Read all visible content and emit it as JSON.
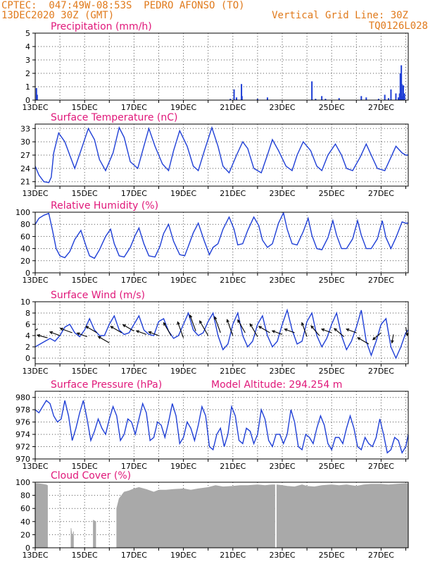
{
  "header": {
    "line1": "CPTEC:  047:49W-08:53S  PEDRO AFONSO (TO)",
    "line2": "13DEC2020 30Z (GMT)",
    "grid_note": "Vertical Grid Line: 30Z",
    "code": "TQ0126L028"
  },
  "colors": {
    "header": "#e07a1c",
    "title": "#e0187a",
    "line": "#1f3fd6",
    "bar": "#1f3fd6",
    "cloud": "#a9a9a9",
    "grid": "#555555",
    "arrow": "#000000"
  },
  "chart_data": [
    {
      "type": "bar",
      "title": "Precipitation (mm/h)",
      "x_range": [
        13,
        28.1
      ],
      "x_ticks": [
        "13DEC",
        "15DEC",
        "17DEC",
        "19DEC",
        "21DEC",
        "23DEC",
        "25DEC",
        "27DEC"
      ],
      "ylim": [
        0,
        5
      ],
      "y_ticks": [
        0,
        1,
        2,
        3,
        4,
        5
      ],
      "x": [
        13.05,
        13.08,
        20.9,
        21.05,
        21.15,
        21.35,
        21.37,
        22.0,
        22.4,
        24.2,
        24.35,
        24.6,
        24.75,
        25.3,
        26.2,
        26.4,
        26.9,
        27.15,
        27.3,
        27.4,
        27.6,
        27.7,
        27.75,
        27.78,
        27.8,
        27.82,
        27.84,
        27.86,
        27.9,
        27.95
      ],
      "values": [
        0.9,
        0.4,
        0.1,
        0.8,
        0.2,
        1.2,
        0.3,
        0.1,
        0.2,
        1.4,
        0.1,
        0.3,
        0.1,
        0.15,
        0.3,
        0.2,
        0.1,
        0.4,
        0.15,
        0.8,
        0.5,
        0.2,
        0.5,
        2.0,
        0.6,
        2.6,
        1.2,
        0.3,
        1.1,
        0.5
      ]
    },
    {
      "type": "line",
      "title": "Surface Temperature (nC)",
      "x_range": [
        13,
        28.1
      ],
      "x_ticks": [
        "13DEC",
        "15DEC",
        "17DEC",
        "19DEC",
        "21DEC",
        "23DEC",
        "25DEC",
        "27DEC"
      ],
      "ylim": [
        20,
        34
      ],
      "y_ticks": [
        21,
        24,
        27,
        30,
        33
      ],
      "x": [
        13.0,
        13.15,
        13.35,
        13.55,
        13.65,
        13.75,
        13.95,
        14.2,
        14.4,
        14.6,
        14.85,
        15.15,
        15.4,
        15.6,
        15.85,
        16.15,
        16.4,
        16.6,
        16.85,
        17.15,
        17.4,
        17.6,
        17.85,
        18.15,
        18.4,
        18.6,
        18.85,
        19.15,
        19.4,
        19.6,
        19.85,
        20.15,
        20.4,
        20.6,
        20.85,
        21.15,
        21.4,
        21.6,
        21.85,
        22.15,
        22.4,
        22.6,
        22.85,
        23.15,
        23.4,
        23.6,
        23.85,
        24.15,
        24.4,
        24.6,
        24.85,
        25.15,
        25.4,
        25.6,
        25.85,
        26.15,
        26.4,
        26.6,
        26.85,
        27.15,
        27.4,
        27.6,
        27.85,
        28.0,
        28.1
      ],
      "values": [
        24.5,
        22.5,
        21.0,
        20.8,
        22.0,
        27.5,
        32.0,
        30.0,
        27.0,
        24.0,
        28.0,
        33.0,
        30.5,
        26.0,
        23.5,
        27.5,
        33.2,
        31.0,
        25.5,
        24.0,
        29.0,
        33.0,
        29.0,
        25.0,
        23.5,
        28.0,
        32.5,
        29.0,
        24.5,
        23.5,
        28.0,
        33.2,
        29.0,
        24.5,
        23.0,
        27.0,
        30.0,
        28.5,
        24.0,
        23.0,
        27.0,
        30.5,
        28.0,
        24.5,
        23.5,
        27.0,
        30.0,
        28.0,
        24.5,
        23.5,
        27.0,
        29.5,
        27.0,
        24.0,
        23.5,
        26.5,
        29.5,
        27.0,
        24.0,
        23.5,
        26.5,
        29.0,
        27.5,
        27.0,
        27.0
      ]
    },
    {
      "type": "line",
      "title": "Relative Humidity (%)",
      "x_range": [
        13,
        28.1
      ],
      "x_ticks": [
        "13DEC",
        "15DEC",
        "17DEC",
        "19DEC",
        "21DEC",
        "23DEC",
        "25DEC",
        "27DEC"
      ],
      "ylim": [
        0,
        100
      ],
      "y_ticks": [
        0,
        20,
        40,
        60,
        80,
        100
      ],
      "x": [
        13.0,
        13.15,
        13.35,
        13.55,
        13.7,
        13.85,
        14.0,
        14.2,
        14.4,
        14.6,
        14.85,
        15.05,
        15.2,
        15.4,
        15.6,
        15.85,
        16.05,
        16.2,
        16.4,
        16.6,
        16.85,
        17.05,
        17.2,
        17.4,
        17.6,
        17.85,
        18.05,
        18.2,
        18.4,
        18.6,
        18.85,
        19.05,
        19.2,
        19.4,
        19.6,
        19.85,
        20.05,
        20.2,
        20.4,
        20.6,
        20.85,
        21.05,
        21.2,
        21.4,
        21.6,
        21.85,
        22.05,
        22.2,
        22.4,
        22.6,
        22.85,
        23.05,
        23.2,
        23.4,
        23.6,
        23.85,
        24.05,
        24.2,
        24.4,
        24.6,
        24.85,
        25.05,
        25.2,
        25.4,
        25.6,
        25.85,
        26.05,
        26.2,
        26.4,
        26.6,
        26.85,
        27.05,
        27.2,
        27.4,
        27.6,
        27.85,
        28.0,
        28.1
      ],
      "values": [
        80,
        90,
        95,
        98,
        70,
        40,
        28,
        25,
        35,
        55,
        70,
        45,
        28,
        24,
        38,
        60,
        72,
        48,
        28,
        26,
        42,
        62,
        74,
        48,
        28,
        26,
        44,
        65,
        80,
        52,
        30,
        28,
        44,
        66,
        82,
        52,
        30,
        42,
        48,
        72,
        92,
        72,
        46,
        48,
        70,
        92,
        78,
        54,
        42,
        48,
        82,
        99,
        72,
        48,
        46,
        68,
        90,
        62,
        40,
        38,
        58,
        86,
        62,
        40,
        40,
        56,
        86,
        62,
        40,
        40,
        56,
        86,
        58,
        40,
        58,
        84,
        82,
        82
      ]
    },
    {
      "type": "line",
      "title": "Surface Wind (m/s)",
      "x_range": [
        13,
        28.1
      ],
      "x_ticks": [
        "13DEC",
        "15DEC",
        "17DEC",
        "19DEC",
        "21DEC",
        "23DEC",
        "25DEC",
        "27DEC"
      ],
      "ylim": [
        -1,
        10
      ],
      "y_ticks": [
        0,
        2,
        4,
        6,
        8,
        10
      ],
      "x": [
        13.0,
        13.2,
        13.4,
        13.6,
        13.8,
        14.0,
        14.2,
        14.4,
        14.6,
        14.8,
        15.0,
        15.2,
        15.4,
        15.6,
        15.8,
        16.0,
        16.2,
        16.4,
        16.6,
        16.8,
        17.0,
        17.2,
        17.4,
        17.6,
        17.8,
        18.0,
        18.2,
        18.4,
        18.6,
        18.8,
        19.0,
        19.2,
        19.4,
        19.6,
        19.8,
        20.0,
        20.2,
        20.4,
        20.6,
        20.8,
        21.0,
        21.2,
        21.4,
        21.6,
        21.8,
        22.0,
        22.2,
        22.4,
        22.6,
        22.8,
        23.0,
        23.2,
        23.4,
        23.6,
        23.8,
        24.0,
        24.2,
        24.4,
        24.6,
        24.8,
        25.0,
        25.2,
        25.4,
        25.6,
        25.8,
        26.0,
        26.2,
        26.4,
        26.6,
        26.8,
        27.0,
        27.2,
        27.4,
        27.6,
        27.8,
        28.0,
        28.1
      ],
      "values": [
        2.0,
        2.5,
        3.0,
        3.5,
        3.0,
        4.0,
        5.5,
        6.0,
        4.5,
        3.8,
        5.0,
        7.0,
        5.0,
        4.0,
        4.0,
        6.0,
        7.5,
        5.0,
        4.2,
        4.5,
        6.0,
        7.5,
        5.0,
        4.2,
        4.0,
        6.5,
        7.0,
        4.8,
        3.5,
        4.0,
        6.0,
        8.0,
        5.0,
        4.0,
        4.5,
        6.5,
        8.0,
        4.0,
        1.5,
        2.5,
        6.0,
        8.0,
        4.0,
        2.0,
        3.0,
        6.0,
        7.5,
        4.0,
        2.0,
        3.0,
        6.0,
        8.5,
        5.0,
        2.5,
        3.0,
        6.5,
        8.0,
        4.0,
        2.0,
        3.5,
        6.0,
        8.0,
        4.0,
        1.5,
        3.0,
        5.5,
        8.5,
        3.0,
        0.5,
        3.0,
        6.0,
        7.0,
        2.0,
        0.0,
        2.0,
        4.5,
        5.0
      ],
      "arrows": {
        "x": [
          13.1,
          13.5,
          14.0,
          14.5,
          15.1,
          15.5,
          16.0,
          16.5,
          17.0,
          17.5,
          18.0,
          18.5,
          19.0,
          19.5,
          20.0,
          20.5,
          21.0,
          21.5,
          22.0,
          22.5,
          23.0,
          23.5,
          24.0,
          24.5,
          25.0,
          25.5,
          26.0,
          26.5,
          27.0,
          27.5,
          28.0
        ],
        "y": [
          5.2,
          3.6,
          4.0,
          4.5,
          3.8,
          4.5,
          2.7,
          4.5,
          4.8,
          4.2,
          4.0,
          4.0,
          3.6,
          4.8,
          4.0,
          4.5,
          4.0,
          4.5,
          3.8,
          4.5,
          4.2,
          4.5,
          3.8,
          4.0,
          4.5,
          3.8,
          4.5,
          2.5,
          4.5,
          4.2,
          5.5
        ],
        "dir_deg": [
          150,
          195,
          200,
          200,
          200,
          210,
          210,
          210,
          210,
          200,
          200,
          240,
          250,
          250,
          240,
          250,
          250,
          240,
          240,
          210,
          200,
          200,
          250,
          230,
          200,
          220,
          200,
          210,
          140,
          100,
          80
        ],
        "speed": [
          2.5,
          2.5,
          2.5,
          3.0,
          2.5,
          3.0,
          3.0,
          3.0,
          3.0,
          2.5,
          2.5,
          3.5,
          4.0,
          4.0,
          4.0,
          4.0,
          4.0,
          3.5,
          3.5,
          3.0,
          2.5,
          2.5,
          3.5,
          3.0,
          2.5,
          3.0,
          2.5,
          3.0,
          2.5,
          2.0,
          2.0
        ]
      }
    },
    {
      "type": "line",
      "title": "Surface Pressure (hPa)",
      "annotation": "Model Altitude: 294.254  m",
      "x_range": [
        13,
        28.1
      ],
      "x_ticks": [
        "13DEC",
        "15DEC",
        "17DEC",
        "19DEC",
        "21DEC",
        "23DEC",
        "25DEC",
        "27DEC"
      ],
      "ylim": [
        970,
        981
      ],
      "y_ticks": [
        970,
        972,
        974,
        976,
        978,
        980
      ],
      "x": [
        13.0,
        13.15,
        13.3,
        13.45,
        13.6,
        13.75,
        13.9,
        14.05,
        14.2,
        14.35,
        14.5,
        14.65,
        14.8,
        14.95,
        15.1,
        15.25,
        15.4,
        15.55,
        15.7,
        15.85,
        16.0,
        16.15,
        16.3,
        16.45,
        16.6,
        16.75,
        16.9,
        17.05,
        17.2,
        17.35,
        17.5,
        17.65,
        17.8,
        17.95,
        18.1,
        18.25,
        18.4,
        18.55,
        18.7,
        18.85,
        19.0,
        19.15,
        19.3,
        19.45,
        19.6,
        19.75,
        19.9,
        20.05,
        20.2,
        20.35,
        20.5,
        20.65,
        20.8,
        20.95,
        21.1,
        21.25,
        21.4,
        21.55,
        21.7,
        21.85,
        22.0,
        22.15,
        22.3,
        22.45,
        22.6,
        22.75,
        22.9,
        23.05,
        23.2,
        23.35,
        23.5,
        23.65,
        23.8,
        23.95,
        24.1,
        24.25,
        24.4,
        24.55,
        24.7,
        24.85,
        25.0,
        25.15,
        25.3,
        25.45,
        25.6,
        25.75,
        25.9,
        26.05,
        26.2,
        26.35,
        26.5,
        26.65,
        26.8,
        26.95,
        27.1,
        27.25,
        27.4,
        27.55,
        27.7,
        27.85,
        28.0,
        28.1
      ],
      "values": [
        978.0,
        977.5,
        978.5,
        979.5,
        979.0,
        977.0,
        976.0,
        976.5,
        979.5,
        977.0,
        973.0,
        975.0,
        977.5,
        979.5,
        976.5,
        973.0,
        974.5,
        976.5,
        975.0,
        974.0,
        976.5,
        978.5,
        977.0,
        973.0,
        974.0,
        976.5,
        976.0,
        974.0,
        976.5,
        979.0,
        977.5,
        973.0,
        973.5,
        976.0,
        975.5,
        973.5,
        976.0,
        979.0,
        977.0,
        972.5,
        973.5,
        976.0,
        975.0,
        973.0,
        975.5,
        978.5,
        977.0,
        972.0,
        971.5,
        974.0,
        975.0,
        972.0,
        974.0,
        978.5,
        977.0,
        973.0,
        972.5,
        975.0,
        974.5,
        972.5,
        974.0,
        978.0,
        976.5,
        973.0,
        972.0,
        974.0,
        974.0,
        972.5,
        974.0,
        978.0,
        976.0,
        972.0,
        971.5,
        974.0,
        973.5,
        972.5,
        975.0,
        977.0,
        975.5,
        972.5,
        971.5,
        973.5,
        973.5,
        972.5,
        975.0,
        977.0,
        975.0,
        972.0,
        971.5,
        973.5,
        972.5,
        972.0,
        973.5,
        976.5,
        974.0,
        971.0,
        971.5,
        973.5,
        973.0,
        971.0,
        972.0,
        974.0
      ]
    },
    {
      "type": "area",
      "title": "Cloud Cover (%)",
      "x_range": [
        13,
        28.1
      ],
      "x_ticks": [
        "13DEC",
        "15DEC",
        "17DEC",
        "19DEC",
        "21DEC",
        "23DEC",
        "25DEC",
        "27DEC"
      ],
      "ylim": [
        0,
        100
      ],
      "y_ticks": [
        0,
        20,
        40,
        60,
        80,
        100
      ],
      "segments": [
        {
          "x": [
            13.0,
            13.1,
            13.3,
            13.45,
            13.5
          ],
          "values": [
            98,
            98,
            97,
            96,
            95
          ]
        },
        {
          "x": [
            14.45,
            14.5,
            14.55
          ],
          "values": [
            30,
            15,
            25
          ]
        },
        {
          "x": [
            15.35,
            15.45
          ],
          "values": [
            42,
            40
          ]
        },
        {
          "x": [
            16.3,
            16.4,
            16.5,
            16.6,
            16.8,
            17.0,
            17.2,
            17.5,
            17.8,
            18.0,
            18.3,
            18.6,
            19.0,
            19.3,
            19.6,
            20.0,
            20.3,
            20.6,
            21.0,
            21.3,
            21.6,
            22.0,
            22.3,
            22.6,
            22.7
          ],
          "values": [
            60,
            75,
            80,
            85,
            87,
            90,
            92,
            89,
            85,
            88,
            88,
            89,
            90,
            88,
            90,
            92,
            95,
            93,
            94,
            95,
            95,
            96,
            95,
            96,
            96
          ]
        },
        {
          "x": [
            22.78,
            23.0,
            23.2,
            23.5,
            23.8,
            24.0,
            24.3,
            24.6,
            25.0,
            25.3,
            25.6,
            26.0,
            26.3,
            26.6,
            27.0,
            27.3,
            27.6,
            28.0,
            28.1
          ],
          "values": [
            96,
            95,
            94,
            93,
            96,
            94,
            93,
            95,
            96,
            95,
            96,
            94,
            96,
            97,
            97,
            96,
            97,
            98,
            98
          ]
        }
      ]
    }
  ]
}
